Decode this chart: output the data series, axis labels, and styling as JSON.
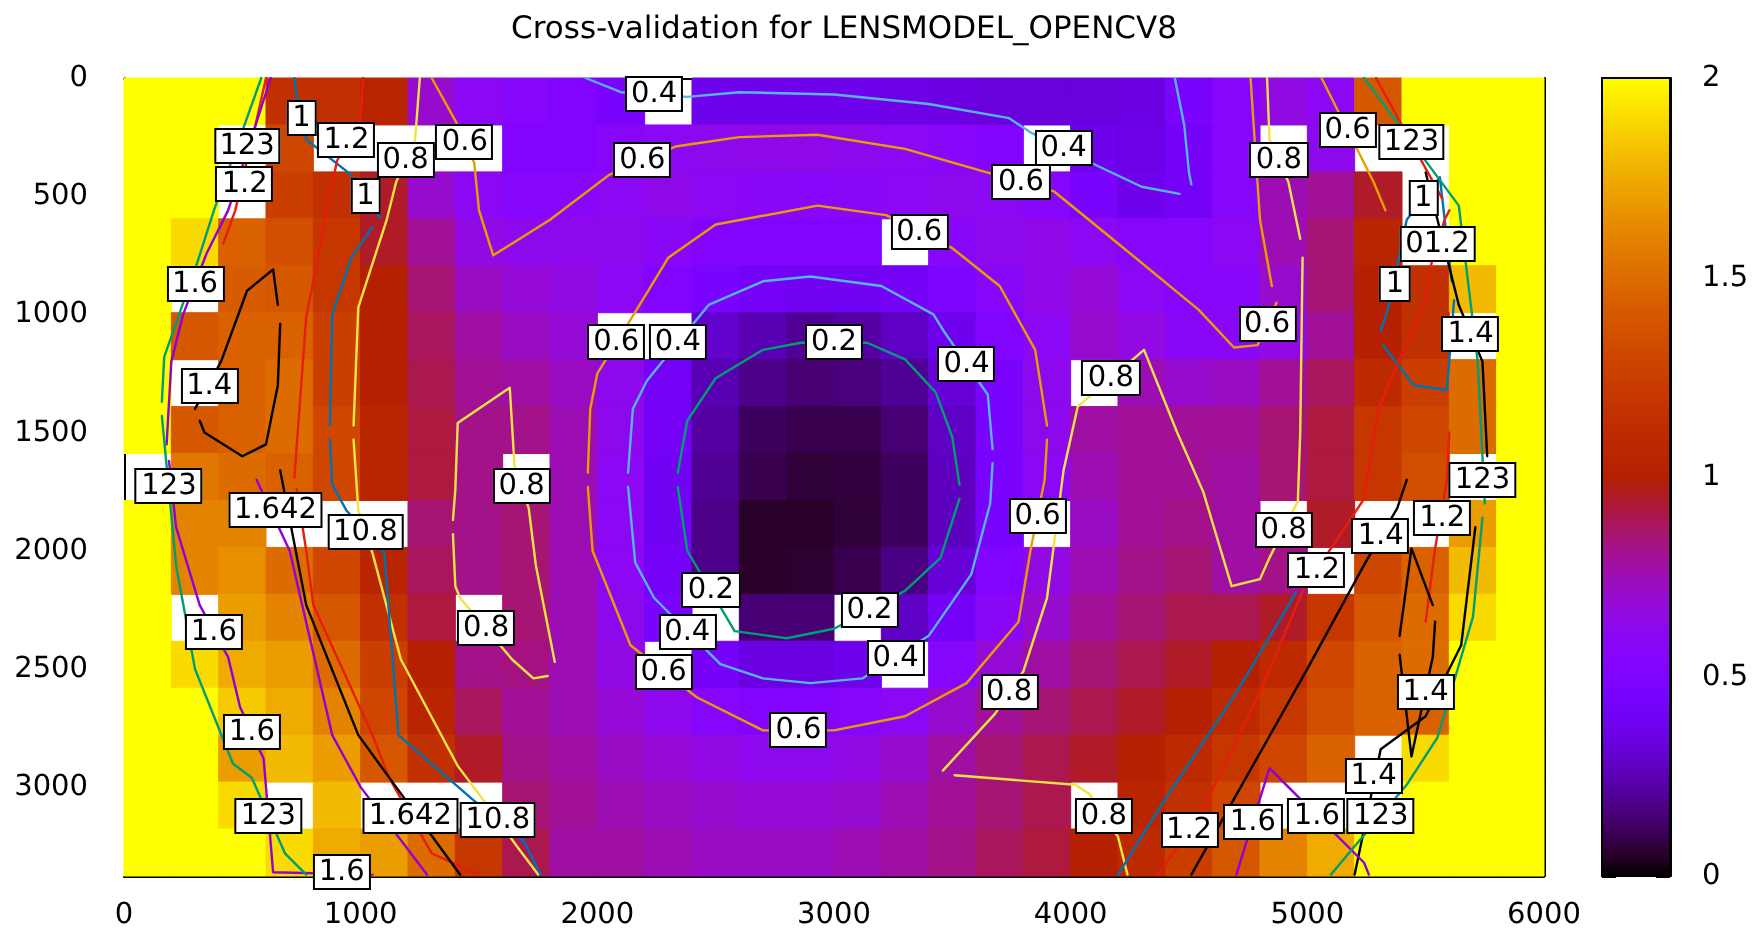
{
  "chart_data": {
    "type": "heatmap",
    "title": "Cross-validation for LENSMODEL_OPENCV8",
    "xlim": [
      0,
      6000
    ],
    "xticks": [
      0,
      1000,
      2000,
      3000,
      4000,
      5000,
      6000
    ],
    "ylim": [
      3376,
      0
    ],
    "yticks": [
      0,
      500,
      1000,
      1500,
      2000,
      2500,
      3000
    ],
    "clim": [
      0,
      2
    ],
    "cticks": [
      0,
      0.5,
      1,
      1.5,
      2
    ],
    "cells": [
      [
        2,
        2,
        2,
        1.15,
        1.15,
        1.05,
        0.7,
        0.6,
        0.55,
        0.5,
        0.45,
        null,
        0.38,
        0.37,
        0.37,
        0.37,
        0.36,
        0.35,
        0.34,
        0.33,
        0.33,
        0.35,
        0.45,
        0.55,
        0.65,
        0.6,
        1.4,
        2,
        2,
        2
      ],
      [
        2,
        2,
        null,
        1.3,
        null,
        null,
        null,
        null,
        0.52,
        0.52,
        0.56,
        0.6,
        0.62,
        0.63,
        0.63,
        0.62,
        0.6,
        0.57,
        0.52,
        null,
        0.37,
        0.36,
        0.42,
        0.55,
        null,
        0.62,
        null,
        null,
        2,
        2
      ],
      [
        2,
        2,
        null,
        1.25,
        1.15,
        0.95,
        0.7,
        0.6,
        0.55,
        0.57,
        0.6,
        0.63,
        0.6,
        0.58,
        0.57,
        0.58,
        0.6,
        0.62,
        0.6,
        0.55,
        0.45,
        0.38,
        0.42,
        0.55,
        0.75,
        0.8,
        0.95,
        null,
        2,
        2
      ],
      [
        2,
        1.9,
        1.45,
        1.35,
        1.2,
        0.95,
        0.8,
        0.65,
        0.62,
        0.62,
        0.62,
        0.58,
        0.52,
        0.5,
        0.5,
        0.5,
        null,
        0.57,
        0.62,
        0.64,
        0.6,
        0.55,
        0.55,
        0.6,
        0.75,
        0.85,
        1.05,
        null,
        2,
        2
      ],
      [
        2,
        null,
        1.42,
        1.4,
        1.2,
        1.0,
        0.85,
        0.72,
        0.68,
        0.65,
        0.6,
        0.5,
        0.45,
        0.42,
        0.4,
        0.4,
        0.42,
        0.48,
        0.57,
        0.64,
        0.68,
        0.6,
        0.55,
        0.57,
        0.7,
        0.85,
        1.0,
        1.15,
        1.8,
        2
      ],
      [
        2,
        1.4,
        1.45,
        1.45,
        1.25,
        1.0,
        0.88,
        0.78,
        0.72,
        0.68,
        null,
        null,
        0.3,
        0.25,
        0.2,
        0.22,
        0.28,
        0.38,
        0.5,
        0.6,
        0.7,
        0.65,
        0.58,
        0.58,
        0.65,
        0.8,
        1.0,
        1.15,
        null,
        2
      ],
      [
        2,
        null,
        1.45,
        1.5,
        1.25,
        1.0,
        0.9,
        0.8,
        0.78,
        0.72,
        0.62,
        0.42,
        0.25,
        0.18,
        0.15,
        0.16,
        0.2,
        0.32,
        0.45,
        0.62,
        null,
        0.75,
        0.7,
        0.72,
        0.8,
        0.88,
        1.1,
        1.25,
        1.5,
        2
      ],
      [
        2,
        1.4,
        1.45,
        1.5,
        1.3,
        1.05,
        0.92,
        0.82,
        0.82,
        0.75,
        0.62,
        0.42,
        0.22,
        0.12,
        0.1,
        0.1,
        0.15,
        0.28,
        0.45,
        0.62,
        0.78,
        0.8,
        0.8,
        0.8,
        0.85,
        0.92,
        1.2,
        1.3,
        1.5,
        2
      ],
      [
        null,
        1.55,
        1.5,
        1.45,
        1.3,
        1.05,
        0.92,
        0.82,
        null,
        0.75,
        0.6,
        0.4,
        0.2,
        0.1,
        0.07,
        0.08,
        0.12,
        0.27,
        0.45,
        0.6,
        0.75,
        0.8,
        0.8,
        0.78,
        0.85,
        0.92,
        1.2,
        1.35,
        null,
        2
      ],
      [
        2,
        1.6,
        1.6,
        null,
        null,
        null,
        0.85,
        0.82,
        0.85,
        0.75,
        0.6,
        0.4,
        0.18,
        0.05,
        0.05,
        0.07,
        0.12,
        0.27,
        0.45,
        null,
        0.72,
        0.8,
        0.82,
        0.78,
        null,
        0.95,
        null,
        null,
        1.7,
        2
      ],
      [
        2,
        1.6,
        1.65,
        1.5,
        1.3,
        1.05,
        0.88,
        0.82,
        0.85,
        0.75,
        0.6,
        0.42,
        0.18,
        0.05,
        0.06,
        0.1,
        0.17,
        0.32,
        0.5,
        0.65,
        0.75,
        0.82,
        0.85,
        0.78,
        0.82,
        null,
        1.3,
        1.45,
        1.8,
        2
      ],
      [
        2,
        null,
        1.7,
        1.6,
        1.4,
        1.15,
        0.92,
        null,
        0.85,
        0.75,
        0.62,
        0.45,
        null,
        0.15,
        0.15,
        null,
        0.28,
        0.42,
        0.58,
        0.7,
        0.8,
        0.85,
        0.9,
        0.9,
        0.95,
        1.2,
        1.4,
        1.5,
        1.9,
        2
      ],
      [
        2,
        1.9,
        1.75,
        1.7,
        1.5,
        1.25,
        1.0,
        0.82,
        0.83,
        0.75,
        0.65,
        null,
        0.42,
        0.35,
        0.35,
        0.38,
        null,
        0.55,
        0.68,
        0.78,
        0.85,
        0.9,
        0.95,
        1.0,
        1.1,
        1.3,
        1.45,
        1.5,
        2,
        2
      ],
      [
        2,
        2,
        1.85,
        1.75,
        1.6,
        1.3,
        1.05,
        0.88,
        0.8,
        0.75,
        0.68,
        0.62,
        0.55,
        0.52,
        0.52,
        0.55,
        0.6,
        0.7,
        0.8,
        0.85,
        0.9,
        0.95,
        1.0,
        1.1,
        1.2,
        1.35,
        1.45,
        1.45,
        2,
        2
      ],
      [
        2,
        2,
        1.7,
        1.8,
        1.7,
        1.4,
        1.15,
        0.95,
        0.82,
        0.78,
        0.72,
        0.68,
        0.65,
        0.62,
        0.62,
        0.65,
        0.7,
        0.78,
        0.85,
        0.9,
        0.95,
        1.0,
        1.1,
        1.2,
        1.3,
        1.45,
        null,
        1.9,
        2,
        2
      ],
      [
        2,
        2,
        1.9,
        null,
        1.8,
        null,
        null,
        null,
        0.85,
        0.8,
        0.75,
        0.72,
        0.7,
        0.68,
        0.68,
        0.7,
        0.75,
        0.8,
        0.85,
        0.9,
        null,
        1.05,
        1.15,
        1.3,
        null,
        null,
        null,
        2,
        2,
        2
      ],
      [
        2,
        2,
        2,
        1.9,
        1.75,
        1.7,
        1.5,
        1.2,
        0.9,
        0.78,
        0.78,
        0.75,
        0.72,
        0.72,
        0.72,
        0.75,
        0.78,
        0.82,
        0.88,
        0.92,
        1.0,
        1.1,
        1.25,
        1.4,
        1.6,
        1.75,
        2,
        2,
        2,
        2
      ]
    ],
    "series": [
      {
        "type": "line",
        "color": "#009e73",
        "x": [
          2340,
          2380,
          2500,
          2700,
          2860,
          3140,
          3300,
          3430,
          3500,
          3530
        ],
        "values": [
          1670,
          1450,
          1270,
          1150,
          1120,
          1120,
          1190,
          1330,
          1520,
          1720
        ]
      },
      {
        "type": "line",
        "color": "#009e73",
        "x": [
          2340,
          2380,
          2580,
          2800,
          3000,
          3300,
          3450,
          3530
        ],
        "values": [
          1730,
          2000,
          2340,
          2370,
          2330,
          2170,
          2030,
          1780
        ]
      },
      {
        "type": "line",
        "color": "#56b4e9",
        "x": [
          2130,
          2150,
          2210,
          2470,
          2700,
          2900,
          3200,
          3420,
          3470,
          3650,
          3670
        ],
        "values": [
          1670,
          1400,
          1280,
          960,
          860,
          840,
          880,
          1000,
          1080,
          1340,
          1570
        ]
      },
      {
        "type": "line",
        "color": "#56b4e9",
        "x": [
          2130,
          2160,
          2240,
          2520,
          2700,
          2900,
          3120,
          3400,
          3580,
          3660,
          3670
        ],
        "values": [
          1730,
          2050,
          2200,
          2480,
          2540,
          2560,
          2540,
          2360,
          2100,
          1800,
          1630
        ]
      },
      {
        "type": "line",
        "color": "#56b4e9",
        "x": [
          1950,
          2100,
          2380,
          2600,
          3000,
          3400,
          3740,
          3830,
          4110,
          4300,
          4460
        ],
        "values": [
          0,
          60,
          80,
          60,
          70,
          110,
          170,
          230,
          370,
          460,
          490
        ]
      },
      {
        "type": "line",
        "color": "#56b4e9",
        "x": [
          4440,
          4480,
          4500,
          4510
        ],
        "values": [
          0,
          200,
          400,
          450
        ]
      },
      {
        "type": "line",
        "color": "#e69f00",
        "x": [
          1960,
          1970,
          2000,
          2160,
          2300,
          2500,
          2930,
          3220,
          3500,
          3700,
          3850,
          3900
        ],
        "values": [
          1670,
          1400,
          1250,
          990,
          760,
          620,
          540,
          580,
          720,
          880,
          1150,
          1470
        ]
      },
      {
        "type": "line",
        "color": "#e69f00",
        "x": [
          1960,
          1980,
          2140,
          2420,
          2700,
          3000,
          3300,
          3560,
          3780,
          3830,
          3890,
          3900
        ],
        "values": [
          1730,
          2000,
          2400,
          2620,
          2760,
          2760,
          2700,
          2560,
          2300,
          2000,
          1700,
          1530
        ]
      },
      {
        "type": "line",
        "color": "#e69f00",
        "x": [
          1300,
          1400,
          1480,
          1500,
          1560,
          1800,
          2050,
          2330,
          2600,
          2930,
          3300,
          3650,
          3930,
          4200,
          4540,
          4690,
          4790,
          4870
        ],
        "values": [
          0,
          180,
          360,
          560,
          750,
          600,
          410,
          290,
          250,
          240,
          300,
          400,
          480,
          700,
          980,
          1140,
          1130,
          950
        ]
      },
      {
        "type": "line",
        "color": "#e69f00",
        "x": [
          4760,
          4800,
          4850
        ],
        "values": [
          0,
          600,
          880
        ]
      },
      {
        "type": "line",
        "color": "#e69f00",
        "x": [
          5060,
          5280,
          5330
        ],
        "values": [
          0,
          440,
          560
        ]
      },
      {
        "type": "line",
        "color": "#f0e442",
        "x": [
          970,
          990,
          1110,
          1150,
          1230,
          1250
        ],
        "values": [
          1470,
          970,
          600,
          440,
          260,
          0
        ]
      },
      {
        "type": "line",
        "color": "#f0e442",
        "x": [
          970,
          990,
          1050,
          1170,
          1410,
          1500,
          1660,
          1750
        ],
        "values": [
          1530,
          1830,
          2010,
          2460,
          2910,
          3030,
          3250,
          3370
        ]
      },
      {
        "type": "line",
        "color": "#f0e442",
        "x": [
          1390,
          1400,
          1410,
          1630,
          1650,
          1710,
          1740,
          1820
        ],
        "values": [
          1870,
          1740,
          1460,
          1310,
          1640,
          1820,
          2060,
          2470
        ]
      },
      {
        "type": "line",
        "color": "#f0e442",
        "x": [
          1390,
          1400,
          1420,
          1640,
          1730,
          1790
        ],
        "values": [
          1930,
          2150,
          2200,
          2460,
          2540,
          2530
        ]
      },
      {
        "type": "line",
        "color": "#f0e442",
        "x": [
          3460,
          3680,
          3800,
          3900,
          3970,
          4030,
          4310,
          4450,
          4560,
          4680,
          4800,
          4840,
          4960,
          4970,
          4980
        ],
        "values": [
          2930,
          2690,
          2510,
          2200,
          1660,
          1390,
          1150,
          1500,
          1750,
          2150,
          2120,
          2030,
          1790,
          1500,
          760
        ]
      },
      {
        "type": "line",
        "color": "#f0e442",
        "x": [
          4830,
          4840,
          4920,
          4970
        ],
        "values": [
          0,
          260,
          440,
          680
        ]
      },
      {
        "type": "line",
        "color": "#f0e442",
        "x": [
          3510,
          4020,
          4080,
          4200,
          4240
        ],
        "values": [
          2950,
          2990,
          3030,
          3210,
          3370
        ]
      },
      {
        "type": "line",
        "color": "#0072b2",
        "x": [
          720,
          730,
          770,
          960,
          1080
        ],
        "values": [
          0,
          80,
          260,
          410,
          590
        ]
      },
      {
        "type": "line",
        "color": "#0072b2",
        "x": [
          870,
          880,
          960,
          1050
        ],
        "values": [
          1470,
          1000,
          760,
          630
        ]
      },
      {
        "type": "line",
        "color": "#0072b2",
        "x": [
          870,
          880,
          940,
          1100,
          1160,
          1470,
          1690,
          1760
        ],
        "values": [
          1530,
          1720,
          1830,
          2010,
          2780,
          3050,
          3230,
          3370
        ]
      },
      {
        "type": "line",
        "color": "#0072b2",
        "x": [
          5310,
          5340,
          5420,
          5560,
          5610
        ],
        "values": [
          1070,
          980,
          600,
          420,
          860
        ]
      },
      {
        "type": "line",
        "color": "#0072b2",
        "x": [
          5320,
          5450,
          5590,
          5620
        ],
        "values": [
          1130,
          1300,
          1320,
          940
        ]
      },
      {
        "type": "line",
        "color": "#0072b2",
        "x": [
          4200,
          4380,
          4700,
          4950
        ],
        "values": [
          3370,
          3080,
          2600,
          2180
        ]
      },
      {
        "type": "line",
        "color": "#e51e10",
        "x": [
          720,
          770,
          850,
          900,
          1000,
          1010
        ],
        "values": [
          1690,
          1010,
          600,
          350,
          170,
          0
        ]
      },
      {
        "type": "line",
        "color": "#e51e10",
        "x": [
          730,
          770,
          800,
          1050,
          1120,
          1300,
          1500
        ],
        "values": [
          1740,
          2000,
          2230,
          2780,
          2960,
          3280,
          3370
        ]
      },
      {
        "type": "line",
        "color": "#e51e10",
        "x": [
          420,
          470,
          560,
          600
        ],
        "values": [
          700,
          560,
          180,
          0
        ]
      },
      {
        "type": "line",
        "color": "#e51e10",
        "x": [
          4370,
          4440,
          4560,
          4800,
          4980,
          5100,
          5240,
          5300,
          5380,
          5500,
          5520,
          5580,
          5600
        ],
        "values": [
          3370,
          3270,
          3090,
          2600,
          2170,
          1990,
          1780,
          1400,
          1210,
          950,
          800,
          600,
          560
        ]
      },
      {
        "type": "line",
        "color": "#e51e10",
        "x": [
          5290,
          5570
        ],
        "values": [
          0,
          510
        ]
      },
      {
        "type": "line",
        "color": "#e51e10",
        "x": [
          5500,
          5540,
          5590,
          5600
        ],
        "values": [
          2300,
          1990,
          1700,
          1500
        ]
      },
      {
        "type": "line",
        "color": "#000000",
        "x": [
          300,
          410,
          520,
          630,
          650
        ],
        "values": [
          1400,
          1200,
          900,
          810,
          960
        ]
      },
      {
        "type": "line",
        "color": "#000000",
        "x": [
          320,
          340,
          500,
          600,
          650,
          660
        ],
        "values": [
          1450,
          1500,
          1600,
          1550,
          1300,
          1040
        ]
      },
      {
        "type": "line",
        "color": "#000000",
        "x": [
          660,
          770,
          990,
          1150,
          1420
        ],
        "values": [
          1660,
          2230,
          2780,
          3000,
          3370
        ]
      },
      {
        "type": "line",
        "color": "#000000",
        "x": [
          4510,
          5000,
          5240,
          5380,
          5420
        ],
        "values": [
          3370,
          2500,
          2060,
          1820,
          1700
        ]
      },
      {
        "type": "line",
        "color": "#000000",
        "x": [
          5390,
          5440,
          5530
        ],
        "values": [
          2360,
          1990,
          2230
        ]
      },
      {
        "type": "line",
        "color": "#000000",
        "x": [
          5390,
          5440,
          5530,
          5540
        ],
        "values": [
          2440,
          2870,
          2450,
          2300
        ]
      },
      {
        "type": "line",
        "color": "#000000",
        "x": [
          5500,
          5640,
          5740,
          5760
        ],
        "values": [
          400,
          960,
          1200,
          1600
        ]
      },
      {
        "type": "line",
        "color": "#000000",
        "x": [
          5200,
          5310,
          5500,
          5650,
          5710
        ],
        "values": [
          3370,
          2840,
          2700,
          2400,
          1900
        ]
      },
      {
        "type": "line",
        "color": "#9400d3",
        "x": [
          560,
          700,
          880,
          1000,
          1280
        ],
        "values": [
          1700,
          2000,
          2780,
          3000,
          3370
        ]
      },
      {
        "type": "line",
        "color": "#9400d3",
        "x": [
          180,
          200,
          250,
          350,
          440,
          620
        ],
        "values": [
          1550,
          1200,
          1000,
          740,
          560,
          0
        ]
      },
      {
        "type": "line",
        "color": "#9400d3",
        "x": [
          190,
          220,
          320,
          440,
          490,
          590,
          630,
          1050
        ],
        "values": [
          1620,
          1900,
          2230,
          2450,
          2660,
          2880,
          3360,
          3370
        ]
      },
      {
        "type": "line",
        "color": "#9400d3",
        "x": [
          4700,
          4840,
          5240,
          5260
        ],
        "values": [
          3370,
          2920,
          3320,
          3370
        ]
      },
      {
        "type": "line",
        "color": "#009e73",
        "x": [
          160,
          170,
          310,
          380,
          580
        ],
        "values": [
          1370,
          1180,
          780,
          560,
          0
        ]
      },
      {
        "type": "line",
        "color": "#009e73",
        "x": [
          160,
          220,
          300,
          460,
          540,
          680,
          770
        ],
        "values": [
          1430,
          2060,
          2500,
          2900,
          2960,
          3280,
          3370
        ]
      },
      {
        "type": "line",
        "color": "#009e73",
        "x": [
          5240,
          5640,
          5720,
          5740,
          5750
        ],
        "values": [
          0,
          540,
          1200,
          1600,
          1800
        ]
      },
      {
        "type": "line",
        "color": "#009e73",
        "x": [
          5100,
          5200,
          5420,
          5550,
          5700,
          5740
        ],
        "values": [
          3370,
          3250,
          2990,
          2790,
          2280,
          1860
        ]
      }
    ],
    "annotations": [
      {
        "text": "1",
        "x": 750,
        "y": 170
      },
      {
        "text": "1.2",
        "x": 940,
        "y": 260
      },
      {
        "text": "0.8",
        "x": 1190,
        "y": 350
      },
      {
        "text": "0.6",
        "x": 1440,
        "y": 270
      },
      {
        "text": "1",
        "x": 1020,
        "y": 500
      },
      {
        "text": "123",
        "x": 520,
        "y": 290
      },
      {
        "text": "1.2",
        "x": 510,
        "y": 450
      },
      {
        "text": "1.6",
        "x": 300,
        "y": 870
      },
      {
        "text": "1.4",
        "x": 360,
        "y": 1300
      },
      {
        "text": "0.6",
        "x": 2080,
        "y": 1120
      },
      {
        "text": "0.4",
        "x": 2340,
        "y": 1120
      },
      {
        "text": "0.8",
        "x": 1680,
        "y": 1730
      },
      {
        "text": "123",
        "x": 190,
        "y": 1730
      },
      {
        "text": "1.642",
        "x": 640,
        "y": 1830
      },
      {
        "text": "10.8",
        "x": 1020,
        "y": 1920
      },
      {
        "text": "1.6",
        "x": 380,
        "y": 2340
      },
      {
        "text": "0.8",
        "x": 1530,
        "y": 2330
      },
      {
        "text": "1.6",
        "x": 540,
        "y": 2770
      },
      {
        "text": "123",
        "x": 610,
        "y": 3120
      },
      {
        "text": "1.642",
        "x": 1210,
        "y": 3120
      },
      {
        "text": "10.8",
        "x": 1580,
        "y": 3140
      },
      {
        "text": "1.6",
        "x": 920,
        "y": 3360
      },
      {
        "text": "0.4",
        "x": 2240,
        "y": 70
      },
      {
        "text": "0.6",
        "x": 2190,
        "y": 350
      },
      {
        "text": "0.4",
        "x": 3970,
        "y": 300
      },
      {
        "text": "0.6",
        "x": 3790,
        "y": 440
      },
      {
        "text": "0.6",
        "x": 3360,
        "y": 650
      },
      {
        "text": "0.2",
        "x": 3000,
        "y": 1120
      },
      {
        "text": "0.4",
        "x": 3560,
        "y": 1210
      },
      {
        "text": "0.8",
        "x": 4170,
        "y": 1270
      },
      {
        "text": "0.6",
        "x": 3860,
        "y": 1850
      },
      {
        "text": "0.2",
        "x": 2480,
        "y": 2170
      },
      {
        "text": "0.2",
        "x": 3150,
        "y": 2250
      },
      {
        "text": "0.4",
        "x": 2380,
        "y": 2340
      },
      {
        "text": "0.4",
        "x": 3260,
        "y": 2450
      },
      {
        "text": "0.6",
        "x": 2280,
        "y": 2510
      },
      {
        "text": "0.8",
        "x": 3740,
        "y": 2600
      },
      {
        "text": "0.6",
        "x": 2850,
        "y": 2760
      },
      {
        "text": "0.8",
        "x": 4140,
        "y": 3120
      },
      {
        "text": "0.6",
        "x": 5170,
        "y": 220
      },
      {
        "text": "123",
        "x": 5440,
        "y": 270
      },
      {
        "text": "0.8",
        "x": 4880,
        "y": 350
      },
      {
        "text": "1",
        "x": 5490,
        "y": 510
      },
      {
        "text": "01.2",
        "x": 5550,
        "y": 700
      },
      {
        "text": "1",
        "x": 5370,
        "y": 870
      },
      {
        "text": "0.6",
        "x": 4830,
        "y": 1040
      },
      {
        "text": "1.4",
        "x": 5690,
        "y": 1080
      },
      {
        "text": "123",
        "x": 5740,
        "y": 1700
      },
      {
        "text": "1.2",
        "x": 5570,
        "y": 1860
      },
      {
        "text": "1.4",
        "x": 5310,
        "y": 1940
      },
      {
        "text": "1.2",
        "x": 5040,
        "y": 2080
      },
      {
        "text": "0.8",
        "x": 4900,
        "y": 1910
      },
      {
        "text": "1.4",
        "x": 5500,
        "y": 2600
      },
      {
        "text": "1.4",
        "x": 5280,
        "y": 2950
      },
      {
        "text": "123",
        "x": 5310,
        "y": 3120
      },
      {
        "text": "1.2",
        "x": 4500,
        "y": 3180
      },
      {
        "text": "1.6",
        "x": 4770,
        "y": 3150
      },
      {
        "text": "1.6",
        "x": 5040,
        "y": 3120
      }
    ]
  }
}
